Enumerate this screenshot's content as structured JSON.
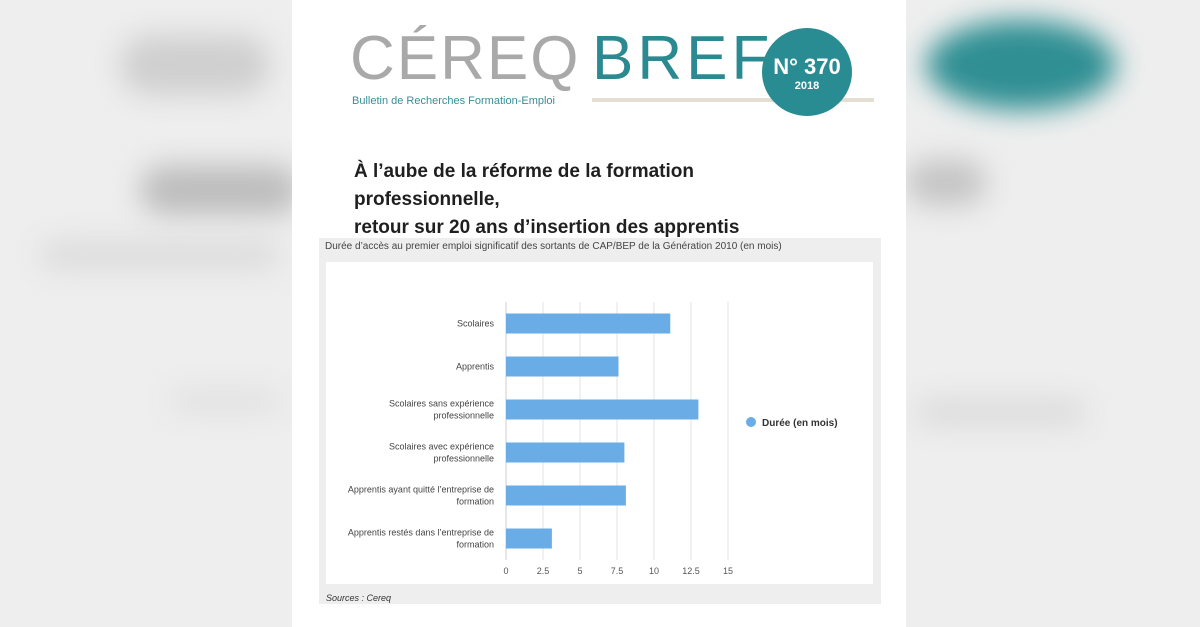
{
  "publication": {
    "brand": "CÉREQ",
    "series": "BREF",
    "tagline": "Bulletin de Recherches Formation-Emploi",
    "issue_number": "N° 370",
    "issue_year": "2018",
    "accent_color": "#2b8a91"
  },
  "headline": {
    "line1": "À l’aube de la réforme de la formation professionnelle,",
    "line2": "retour sur 20 ans d’insertion des apprentis"
  },
  "figure": {
    "caption": "Durée d’accès au premier emploi significatif des sortants de CAP/BEP de la Génération 2010 (en mois)",
    "sources": "Sources : Cereq"
  },
  "chart_data": {
    "type": "bar",
    "orientation": "horizontal",
    "title": "",
    "xlabel": "",
    "ylabel": "",
    "categories": [
      [
        "Scolaires"
      ],
      [
        "Apprentis"
      ],
      [
        "Scolaires sans expérience",
        "professionnelle"
      ],
      [
        "Scolaires avec expérience",
        "professionnelle"
      ],
      [
        "Apprentis ayant quitté l’entreprise de",
        "formation"
      ],
      [
        "Apprentis restés dans l’entreprise de",
        "formation"
      ]
    ],
    "series": [
      {
        "name": "Durée (en mois)",
        "values": [
          11.1,
          7.6,
          13.0,
          8.0,
          8.1,
          3.1
        ],
        "color": "#6aace6"
      }
    ],
    "xlim": [
      0,
      15
    ],
    "xticks": [
      "0",
      "2.5",
      "5",
      "7.5",
      "10",
      "12.5",
      "15"
    ],
    "grid": true,
    "legend_position": "right"
  }
}
